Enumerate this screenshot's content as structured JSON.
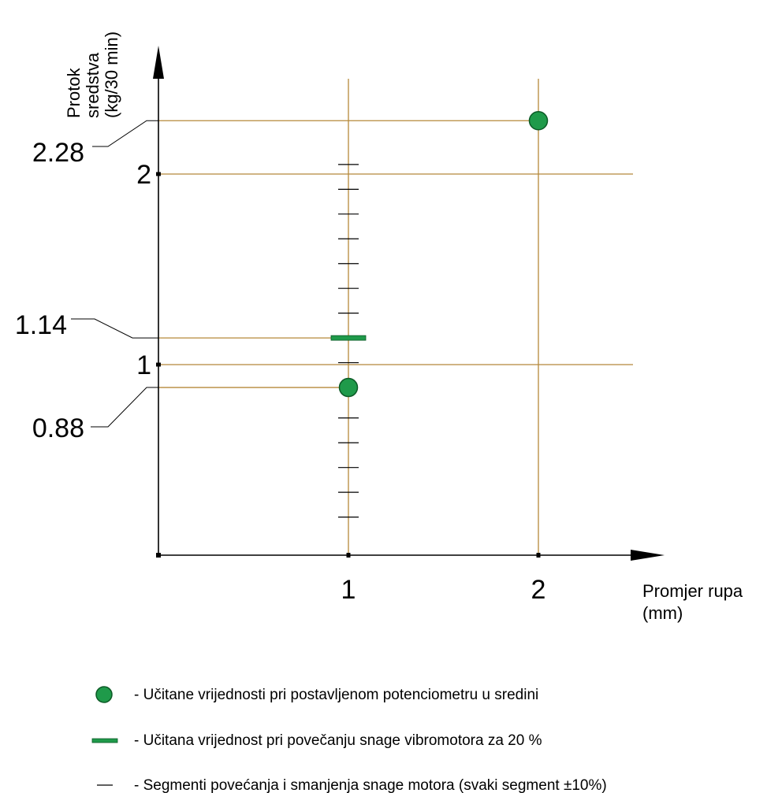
{
  "chart_data": {
    "type": "scatter",
    "xlabel": [
      "Promjer rupa",
      "(mm)"
    ],
    "ylabel": [
      "Protok",
      "sredstva",
      "(kg/30 min)"
    ],
    "x_ticks": [
      "1",
      "2"
    ],
    "y_ticks": [
      "1",
      "2"
    ],
    "xlim": [
      0,
      2.5
    ],
    "ylim": [
      0,
      2.5
    ],
    "grid": false,
    "reference_lines": {
      "vertical": [
        1,
        2
      ],
      "horizontal": [
        0.88,
        1,
        1.14,
        2,
        2.28
      ]
    },
    "series": [
      {
        "marker": "circle",
        "color": "#1f9a4a",
        "points": [
          {
            "x": 1,
            "y": 0.88
          },
          {
            "x": 2,
            "y": 2.28
          }
        ]
      },
      {
        "marker": "dash",
        "color": "#1f9a4a",
        "points": [
          {
            "x": 1,
            "y": 1.14
          }
        ]
      }
    ],
    "segments": {
      "x": 1,
      "values": [
        0.2,
        0.33,
        0.46,
        0.59,
        0.72,
        1.01,
        1.14,
        1.27,
        1.4,
        1.53,
        1.66,
        1.79,
        1.92,
        2.05
      ]
    },
    "callouts": [
      {
        "label": "2.28",
        "y": 2.28
      },
      {
        "label": "1.14",
        "y": 1.14
      },
      {
        "label": "0.88",
        "y": 0.88
      }
    ],
    "legend": {
      "position": "bottom",
      "entries": [
        {
          "marker": "circle",
          "text": "- Učitane vrijednosti pri postavljenom potenciometru u sredini"
        },
        {
          "marker": "dash",
          "text": "- Učitana vrijednost pri povečanju snage vibromotora za 20 %"
        },
        {
          "marker": "thin-dash",
          "text": "- Segmenti povećanja i smanjenja snage motora (svaki segment ±10%)"
        }
      ]
    },
    "colors": {
      "axis": "#000000",
      "reference_line": "#b5883a",
      "marker": "#1f9a4a",
      "marker_stroke": "#0c5a26"
    }
  }
}
